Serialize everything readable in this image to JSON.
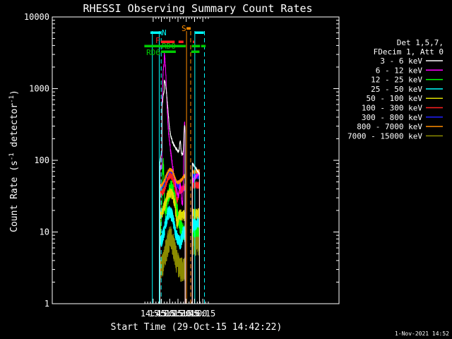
{
  "chart_data": {
    "type": "line",
    "title": "RHESSI Observing Summary Count Rates",
    "xlabel": "Start Time (29-Oct-15 14:42:22)",
    "ylabel": "Count Rate (s",
    "ylabel_exp1": "-1",
    "ylabel_mid": " detector",
    "ylabel_exp2": "-1",
    "ylabel_end": ")",
    "y_scale": "log",
    "ylim": [
      1,
      10000
    ],
    "xlim_min": [
      702,
      1222
    ],
    "x_ticks": [
      {
        "label": "14:45",
        "min": 885
      },
      {
        "label": "15:00",
        "min": 900
      },
      {
        "label": "15:15",
        "min": 915
      },
      {
        "label": "15:30",
        "min": 930
      },
      {
        "label": "15:45",
        "min": 945
      },
      {
        "label": "16:00",
        "min": 960
      },
      {
        "label": "16:15",
        "min": 975
      }
    ],
    "y_ticks": [
      {
        "label": "1",
        "v": 1
      },
      {
        "label": "10",
        "v": 10
      },
      {
        "label": "100",
        "v": 100
      },
      {
        "label": "1000",
        "v": 1000
      },
      {
        "label": "10000",
        "v": 10000
      }
    ],
    "legend_header": [
      "Det 1,5,7,",
      "FDecim 1, Att 0"
    ],
    "legend_position": "right",
    "series": [
      {
        "name": "3 - 6 keV",
        "color": "#ffffff"
      },
      {
        "name": "6 - 12 keV",
        "color": "#ff00ff"
      },
      {
        "name": "12 - 25 keV",
        "color": "#00ff00"
      },
      {
        "name": "25 - 50 keV",
        "color": "#00ffff"
      },
      {
        "name": "50 - 100 keV",
        "color": "#dddd00"
      },
      {
        "name": "100 - 300 keV",
        "color": "#ff2020"
      },
      {
        "name": "300 - 800 keV",
        "color": "#2020ff"
      },
      {
        "name": "800 - 7000 keV",
        "color": "#ff8c00"
      },
      {
        "name": "7000 - 15000 keV",
        "color": "#8b8b00"
      }
    ],
    "flags": [
      {
        "label": "N",
        "color": "#00ffff"
      },
      {
        "label": "F",
        "color": "#ff2020"
      },
      {
        "label": "RD0",
        "color": "#00cc00"
      },
      {
        "label": "RD6",
        "color": "#00cc00"
      },
      {
        "label": "S",
        "color": "#ff8c00"
      }
    ],
    "footer_stamp": "1-Nov-2021 14:52"
  }
}
